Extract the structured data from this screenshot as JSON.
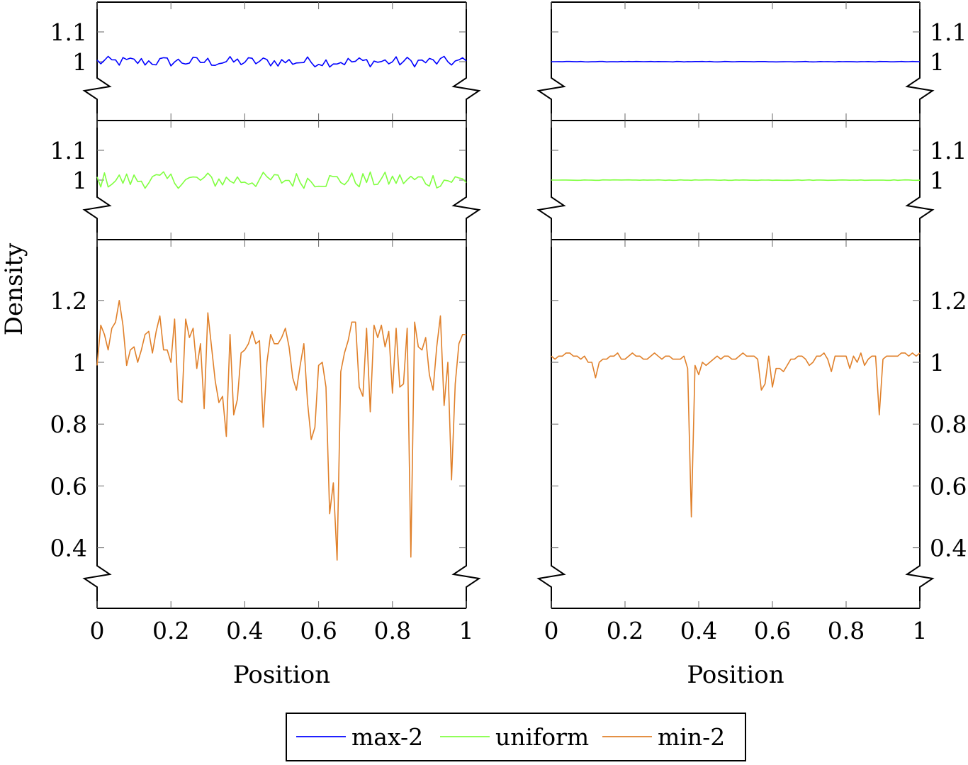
{
  "chart_data": [
    {
      "type": "line",
      "panel": "left-top",
      "series": [
        {
          "name": "max-2",
          "color": "#0000ff",
          "x_range": [
            0,
            1
          ],
          "n_points": 101,
          "mean": 1.0,
          "noise_amplitude": 0.018
        }
      ],
      "yticks": [
        {
          "value": 1,
          "label": "1"
        },
        {
          "value": 1.1,
          "label": "1.1"
        }
      ],
      "ylim": [
        0.95,
        1.15
      ],
      "xlim": [
        0,
        1
      ],
      "axis_break": "bottom",
      "yticks_side": "left"
    },
    {
      "type": "line",
      "panel": "left-middle",
      "series": [
        {
          "name": "uniform",
          "color": "#80ff40",
          "x_range": [
            0,
            1
          ],
          "n_points": 101,
          "mean": 1.0,
          "noise_amplitude": 0.028
        }
      ],
      "yticks": [
        {
          "value": 1,
          "label": "1"
        },
        {
          "value": 1.1,
          "label": "1.1"
        }
      ],
      "ylim": [
        0.95,
        1.15
      ],
      "xlim": [
        0,
        1
      ],
      "axis_break": "bottom",
      "yticks_side": "left"
    },
    {
      "type": "line",
      "panel": "left-bottom",
      "series": [
        {
          "name": "min-2",
          "color": "#e0802a",
          "x": [
            0,
            0.01,
            0.02,
            0.03,
            0.04,
            0.05,
            0.06,
            0.07,
            0.08,
            0.09,
            0.1,
            0.11,
            0.12,
            0.13,
            0.14,
            0.15,
            0.16,
            0.17,
            0.18,
            0.19,
            0.2,
            0.21,
            0.22,
            0.23,
            0.24,
            0.25,
            0.26,
            0.27,
            0.28,
            0.29,
            0.3,
            0.31,
            0.32,
            0.33,
            0.34,
            0.35,
            0.36,
            0.37,
            0.38,
            0.39,
            0.4,
            0.41,
            0.42,
            0.43,
            0.44,
            0.45,
            0.46,
            0.47,
            0.48,
            0.49,
            0.5,
            0.51,
            0.52,
            0.53,
            0.54,
            0.55,
            0.56,
            0.57,
            0.58,
            0.59,
            0.6,
            0.61,
            0.62,
            0.63,
            0.64,
            0.65,
            0.66,
            0.67,
            0.68,
            0.69,
            0.7,
            0.71,
            0.72,
            0.73,
            0.74,
            0.75,
            0.76,
            0.77,
            0.78,
            0.79,
            0.8,
            0.81,
            0.82,
            0.83,
            0.84,
            0.85,
            0.86,
            0.87,
            0.88,
            0.89,
            0.9,
            0.91,
            0.92,
            0.93,
            0.94,
            0.95,
            0.96,
            0.97,
            0.98,
            0.99,
            1
          ],
          "y": [
            0.99,
            1.12,
            1.09,
            1.04,
            1.11,
            1.13,
            1.2,
            1.12,
            0.99,
            1.04,
            1.05,
            1.0,
            1.04,
            1.09,
            1.1,
            1.03,
            1.1,
            1.15,
            1.04,
            1.04,
            1.0,
            1.14,
            0.88,
            0.87,
            1.14,
            1.08,
            1.11,
            0.98,
            1.06,
            0.85,
            1.16,
            1.05,
            0.94,
            0.87,
            0.89,
            0.76,
            1.09,
            0.83,
            0.88,
            1.03,
            1.04,
            1.06,
            1.1,
            1.06,
            1.07,
            0.79,
            1.0,
            1.09,
            1.06,
            1.06,
            1.08,
            1.11,
            1.05,
            0.95,
            0.91,
            0.99,
            1.06,
            0.87,
            0.75,
            0.79,
            0.99,
            1.0,
            0.92,
            0.51,
            0.61,
            0.36,
            0.97,
            1.03,
            1.07,
            1.13,
            1.13,
            0.92,
            0.89,
            1.11,
            0.84,
            1.12,
            1.08,
            1.12,
            1.05,
            1.1,
            0.9,
            1.11,
            0.92,
            0.93,
            1.11,
            0.37,
            1.13,
            1.05,
            1.04,
            1.08,
            0.96,
            0.91,
            1.05,
            1.15,
            0.86,
            1.0,
            0.62,
            0.93,
            1.06,
            1.09,
            1.09
          ]
        }
      ],
      "yticks": [
        {
          "value": 0.4,
          "label": "0.4"
        },
        {
          "value": 0.6,
          "label": "0.6"
        },
        {
          "value": 0.8,
          "label": "0.8"
        },
        {
          "value": 1,
          "label": "1"
        },
        {
          "value": 1.2,
          "label": "1.2"
        }
      ],
      "ylim": [
        0.3,
        1.4
      ],
      "xlim": [
        0,
        1
      ],
      "axis_break": "bottom",
      "yticks_side": "left",
      "xticks": [
        "0",
        "0.2",
        "0.4",
        "0.6",
        "0.8",
        "1"
      ],
      "xlabel": "Position",
      "ylabel": "Density"
    },
    {
      "type": "line",
      "panel": "right-top",
      "series": [
        {
          "name": "max-2",
          "color": "#0000ff",
          "x_range": [
            0,
            1
          ],
          "n_points": 101,
          "mean": 1.0,
          "noise_amplitude": 0.0008
        }
      ],
      "yticks": [
        {
          "value": 1,
          "label": "1"
        },
        {
          "value": 1.1,
          "label": "1.1"
        }
      ],
      "ylim": [
        0.95,
        1.15
      ],
      "xlim": [
        0,
        1
      ],
      "axis_break": "bottom",
      "yticks_side": "right"
    },
    {
      "type": "line",
      "panel": "right-middle",
      "series": [
        {
          "name": "uniform",
          "color": "#80ff40",
          "x_range": [
            0,
            1
          ],
          "n_points": 101,
          "mean": 1.0,
          "noise_amplitude": 0.0008
        }
      ],
      "yticks": [
        {
          "value": 1,
          "label": "1"
        },
        {
          "value": 1.1,
          "label": "1.1"
        }
      ],
      "ylim": [
        0.95,
        1.15
      ],
      "xlim": [
        0,
        1
      ],
      "axis_break": "bottom",
      "yticks_side": "right"
    },
    {
      "type": "line",
      "panel": "right-bottom",
      "series": [
        {
          "name": "min-2",
          "color": "#e0802a",
          "x": [
            0,
            0.01,
            0.02,
            0.03,
            0.04,
            0.05,
            0.06,
            0.07,
            0.08,
            0.09,
            0.1,
            0.11,
            0.12,
            0.13,
            0.14,
            0.15,
            0.16,
            0.17,
            0.18,
            0.19,
            0.2,
            0.21,
            0.22,
            0.23,
            0.24,
            0.25,
            0.26,
            0.27,
            0.28,
            0.29,
            0.3,
            0.31,
            0.32,
            0.33,
            0.34,
            0.35,
            0.36,
            0.37,
            0.38,
            0.39,
            0.4,
            0.41,
            0.42,
            0.43,
            0.44,
            0.45,
            0.46,
            0.47,
            0.48,
            0.49,
            0.5,
            0.51,
            0.52,
            0.53,
            0.54,
            0.55,
            0.56,
            0.57,
            0.58,
            0.59,
            0.6,
            0.61,
            0.62,
            0.63,
            0.64,
            0.65,
            0.66,
            0.67,
            0.68,
            0.69,
            0.7,
            0.71,
            0.72,
            0.73,
            0.74,
            0.75,
            0.76,
            0.77,
            0.78,
            0.79,
            0.8,
            0.81,
            0.82,
            0.83,
            0.84,
            0.85,
            0.86,
            0.87,
            0.88,
            0.89,
            0.9,
            0.91,
            0.92,
            0.93,
            0.94,
            0.95,
            0.96,
            0.97,
            0.98,
            0.99,
            1
          ],
          "y": [
            1.02,
            1.01,
            1.02,
            1.02,
            1.03,
            1.03,
            1.02,
            1.02,
            1.01,
            1.02,
            1.0,
            1.0,
            0.95,
            1.0,
            1.01,
            1.01,
            1.02,
            1.02,
            1.03,
            1.01,
            1.01,
            1.02,
            1.03,
            1.02,
            1.02,
            1.01,
            1.01,
            1.02,
            1.03,
            1.02,
            1.01,
            1.02,
            1.02,
            1.01,
            1.01,
            1.01,
            1.02,
            0.98,
            0.5,
            0.99,
            0.96,
            1.0,
            0.99,
            1.0,
            1.01,
            1.02,
            1.01,
            1.02,
            1.02,
            1.01,
            1.01,
            1.02,
            1.03,
            1.02,
            1.02,
            1.02,
            1.01,
            0.91,
            0.93,
            1.02,
            0.92,
            0.98,
            0.98,
            0.97,
            0.99,
            1.01,
            1.01,
            1.02,
            1.02,
            1.01,
            0.99,
            1.0,
            1.02,
            1.02,
            1.03,
            1.01,
            0.97,
            1.02,
            1.02,
            1.02,
            1.02,
            0.98,
            1.02,
            1.0,
            1.03,
            0.99,
            1.01,
            1.02,
            1.02,
            0.83,
            1.01,
            1.02,
            1.02,
            1.02,
            1.02,
            1.03,
            1.03,
            1.02,
            1.03,
            1.02,
            1.03
          ]
        }
      ],
      "yticks": [
        {
          "value": 0.4,
          "label": "0.4"
        },
        {
          "value": 0.6,
          "label": "0.6"
        },
        {
          "value": 0.8,
          "label": "0.8"
        },
        {
          "value": 1,
          "label": "1"
        },
        {
          "value": 1.2,
          "label": "1.2"
        }
      ],
      "ylim": [
        0.3,
        1.4
      ],
      "xlim": [
        0,
        1
      ],
      "axis_break": "bottom",
      "yticks_side": "right",
      "xticks": [
        "0",
        "0.2",
        "0.4",
        "0.6",
        "0.8",
        "1"
      ],
      "xlabel": "Position"
    }
  ],
  "legend": {
    "placement": "bottom-center",
    "entries": [
      {
        "name": "max-2",
        "color": "#0000ff"
      },
      {
        "name": "uniform",
        "color": "#80ff40"
      },
      {
        "name": "min-2",
        "color": "#e0802a"
      }
    ]
  }
}
